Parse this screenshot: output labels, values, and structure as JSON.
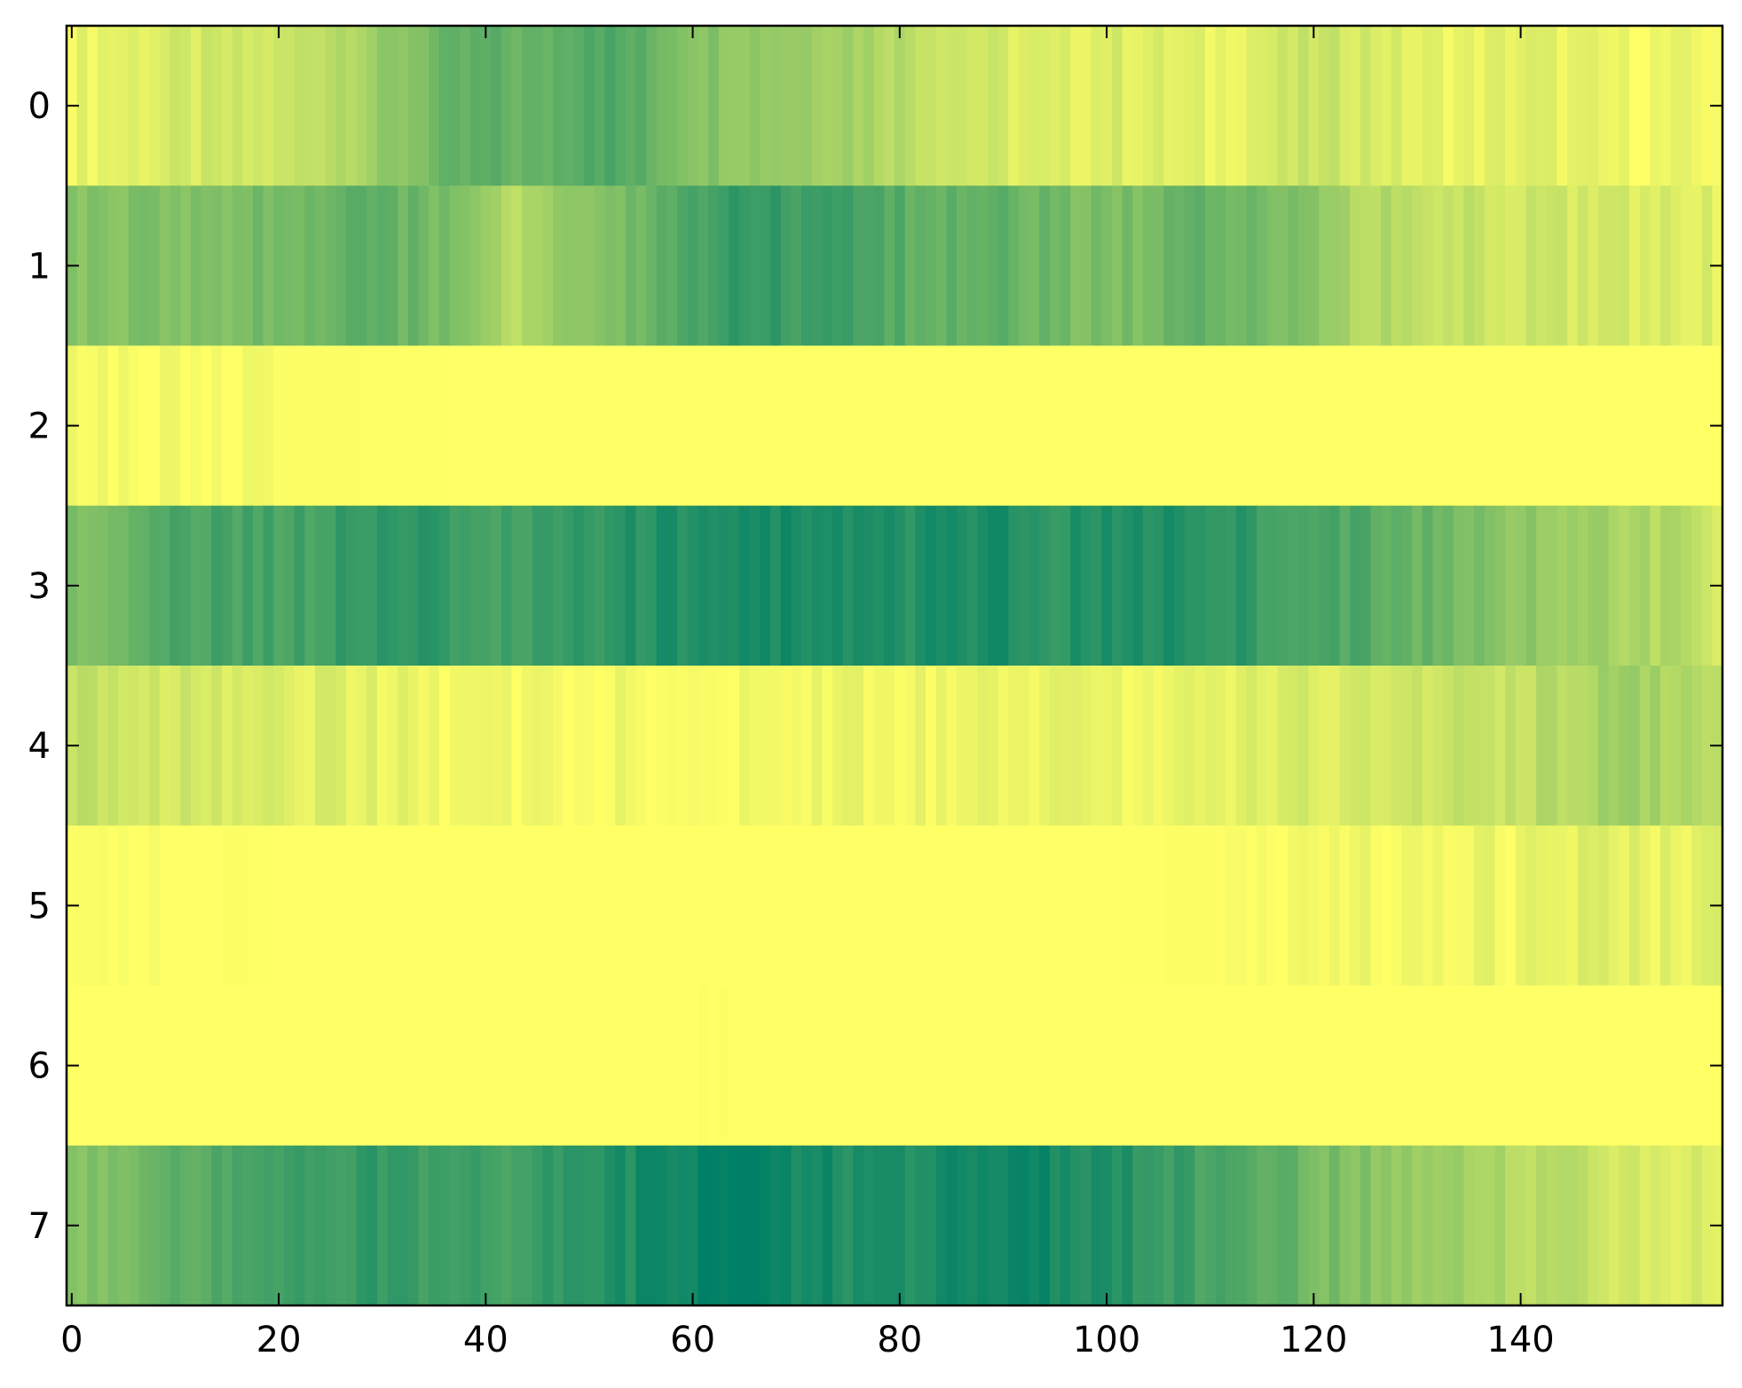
{
  "chart_data": {
    "type": "heatmap",
    "title": "",
    "xlabel": "",
    "ylabel": "",
    "x_range": [
      0,
      159
    ],
    "y_rows": [
      0,
      1,
      2,
      3,
      4,
      5,
      6,
      7
    ],
    "xlim": [
      -0.5,
      159.5
    ],
    "ylim": [
      7.5,
      -0.5
    ],
    "x_ticks": [
      0,
      20,
      40,
      60,
      80,
      100,
      120,
      140
    ],
    "y_ticks": [
      0,
      1,
      2,
      3,
      4,
      5,
      6,
      7
    ],
    "colormap": "summer_r",
    "value_range": [
      0,
      1
    ],
    "grid": false,
    "rows": [
      {
        "row": 0,
        "knots": [
          [
            0,
            0.08
          ],
          [
            10,
            0.15
          ],
          [
            20,
            0.18
          ],
          [
            25,
            0.3
          ],
          [
            30,
            0.4
          ],
          [
            35,
            0.55
          ],
          [
            40,
            0.62
          ],
          [
            45,
            0.58
          ],
          [
            50,
            0.72
          ],
          [
            55,
            0.62
          ],
          [
            60,
            0.5
          ],
          [
            65,
            0.45
          ],
          [
            70,
            0.42
          ],
          [
            75,
            0.38
          ],
          [
            80,
            0.3
          ],
          [
            85,
            0.22
          ],
          [
            90,
            0.15
          ],
          [
            95,
            0.1
          ],
          [
            100,
            0.15
          ],
          [
            105,
            0.12
          ],
          [
            110,
            0.08
          ],
          [
            115,
            0.15
          ],
          [
            120,
            0.2
          ],
          [
            125,
            0.18
          ],
          [
            130,
            0.1
          ],
          [
            135,
            0.08
          ],
          [
            140,
            0.12
          ],
          [
            150,
            0.05
          ],
          [
            159,
            0.06
          ]
        ]
      },
      {
        "row": 1,
        "knots": [
          [
            0,
            0.45
          ],
          [
            5,
            0.5
          ],
          [
            10,
            0.45
          ],
          [
            15,
            0.5
          ],
          [
            20,
            0.55
          ],
          [
            25,
            0.6
          ],
          [
            30,
            0.62
          ],
          [
            35,
            0.55
          ],
          [
            40,
            0.35
          ],
          [
            43,
            0.3
          ],
          [
            46,
            0.4
          ],
          [
            50,
            0.45
          ],
          [
            55,
            0.55
          ],
          [
            60,
            0.7
          ],
          [
            65,
            0.8
          ],
          [
            70,
            0.75
          ],
          [
            75,
            0.72
          ],
          [
            80,
            0.65
          ],
          [
            85,
            0.6
          ],
          [
            90,
            0.62
          ],
          [
            95,
            0.55
          ],
          [
            100,
            0.5
          ],
          [
            105,
            0.55
          ],
          [
            110,
            0.6
          ],
          [
            115,
            0.55
          ],
          [
            120,
            0.45
          ],
          [
            125,
            0.3
          ],
          [
            130,
            0.28
          ],
          [
            135,
            0.22
          ],
          [
            140,
            0.2
          ],
          [
            145,
            0.18
          ],
          [
            150,
            0.15
          ],
          [
            159,
            0.12
          ]
        ]
      },
      {
        "row": 2,
        "knots": [
          [
            0,
            0.02
          ],
          [
            20,
            0.01
          ],
          [
            40,
            0.0
          ],
          [
            80,
            0.0
          ],
          [
            120,
            0.0
          ],
          [
            159,
            0.0
          ]
        ]
      },
      {
        "row": 3,
        "knots": [
          [
            0,
            0.5
          ],
          [
            5,
            0.55
          ],
          [
            10,
            0.7
          ],
          [
            20,
            0.72
          ],
          [
            25,
            0.75
          ],
          [
            30,
            0.82
          ],
          [
            35,
            0.8
          ],
          [
            40,
            0.72
          ],
          [
            45,
            0.75
          ],
          [
            50,
            0.8
          ],
          [
            55,
            0.85
          ],
          [
            60,
            0.88
          ],
          [
            65,
            0.9
          ],
          [
            70,
            0.9
          ],
          [
            75,
            0.88
          ],
          [
            80,
            0.86
          ],
          [
            85,
            0.88
          ],
          [
            90,
            0.88
          ],
          [
            95,
            0.84
          ],
          [
            100,
            0.86
          ],
          [
            105,
            0.88
          ],
          [
            110,
            0.86
          ],
          [
            115,
            0.78
          ],
          [
            120,
            0.72
          ],
          [
            125,
            0.68
          ],
          [
            130,
            0.6
          ],
          [
            135,
            0.5
          ],
          [
            140,
            0.45
          ],
          [
            145,
            0.4
          ],
          [
            150,
            0.32
          ],
          [
            155,
            0.3
          ],
          [
            159,
            0.2
          ]
        ]
      },
      {
        "row": 4,
        "knots": [
          [
            0,
            0.25
          ],
          [
            5,
            0.22
          ],
          [
            10,
            0.18
          ],
          [
            15,
            0.15
          ],
          [
            20,
            0.12
          ],
          [
            25,
            0.12
          ],
          [
            30,
            0.08
          ],
          [
            35,
            0.06
          ],
          [
            40,
            0.04
          ],
          [
            50,
            0.03
          ],
          [
            60,
            0.05
          ],
          [
            70,
            0.05
          ],
          [
            80,
            0.06
          ],
          [
            90,
            0.08
          ],
          [
            100,
            0.06
          ],
          [
            105,
            0.08
          ],
          [
            110,
            0.1
          ],
          [
            115,
            0.12
          ],
          [
            120,
            0.15
          ],
          [
            125,
            0.18
          ],
          [
            130,
            0.2
          ],
          [
            135,
            0.22
          ],
          [
            140,
            0.25
          ],
          [
            145,
            0.3
          ],
          [
            150,
            0.38
          ],
          [
            155,
            0.32
          ],
          [
            159,
            0.28
          ]
        ]
      },
      {
        "row": 5,
        "knots": [
          [
            0,
            0.01
          ],
          [
            10,
            0.02
          ],
          [
            20,
            0.0
          ],
          [
            60,
            0.0
          ],
          [
            100,
            0.0
          ],
          [
            120,
            0.02
          ],
          [
            125,
            0.04
          ],
          [
            130,
            0.06
          ],
          [
            135,
            0.08
          ],
          [
            140,
            0.06
          ],
          [
            145,
            0.1
          ],
          [
            150,
            0.12
          ],
          [
            155,
            0.08
          ],
          [
            159,
            0.1
          ]
        ]
      },
      {
        "row": 6,
        "knots": [
          [
            0,
            0.0
          ],
          [
            60,
            0.0
          ],
          [
            62,
            0.02
          ],
          [
            64,
            0.0
          ],
          [
            159,
            0.0
          ]
        ]
      },
      {
        "row": 7,
        "knots": [
          [
            0,
            0.45
          ],
          [
            5,
            0.55
          ],
          [
            10,
            0.62
          ],
          [
            15,
            0.68
          ],
          [
            20,
            0.72
          ],
          [
            25,
            0.78
          ],
          [
            30,
            0.8
          ],
          [
            35,
            0.75
          ],
          [
            40,
            0.72
          ],
          [
            45,
            0.78
          ],
          [
            50,
            0.85
          ],
          [
            55,
            0.9
          ],
          [
            60,
            0.96
          ],
          [
            65,
            0.98
          ],
          [
            70,
            0.92
          ],
          [
            75,
            0.88
          ],
          [
            80,
            0.88
          ],
          [
            85,
            0.9
          ],
          [
            90,
            0.95
          ],
          [
            95,
            0.92
          ],
          [
            100,
            0.88
          ],
          [
            105,
            0.8
          ],
          [
            110,
            0.72
          ],
          [
            115,
            0.65
          ],
          [
            120,
            0.55
          ],
          [
            125,
            0.48
          ],
          [
            130,
            0.42
          ],
          [
            135,
            0.35
          ],
          [
            140,
            0.3
          ],
          [
            145,
            0.25
          ],
          [
            150,
            0.18
          ],
          [
            155,
            0.15
          ],
          [
            159,
            0.12
          ]
        ]
      }
    ]
  }
}
